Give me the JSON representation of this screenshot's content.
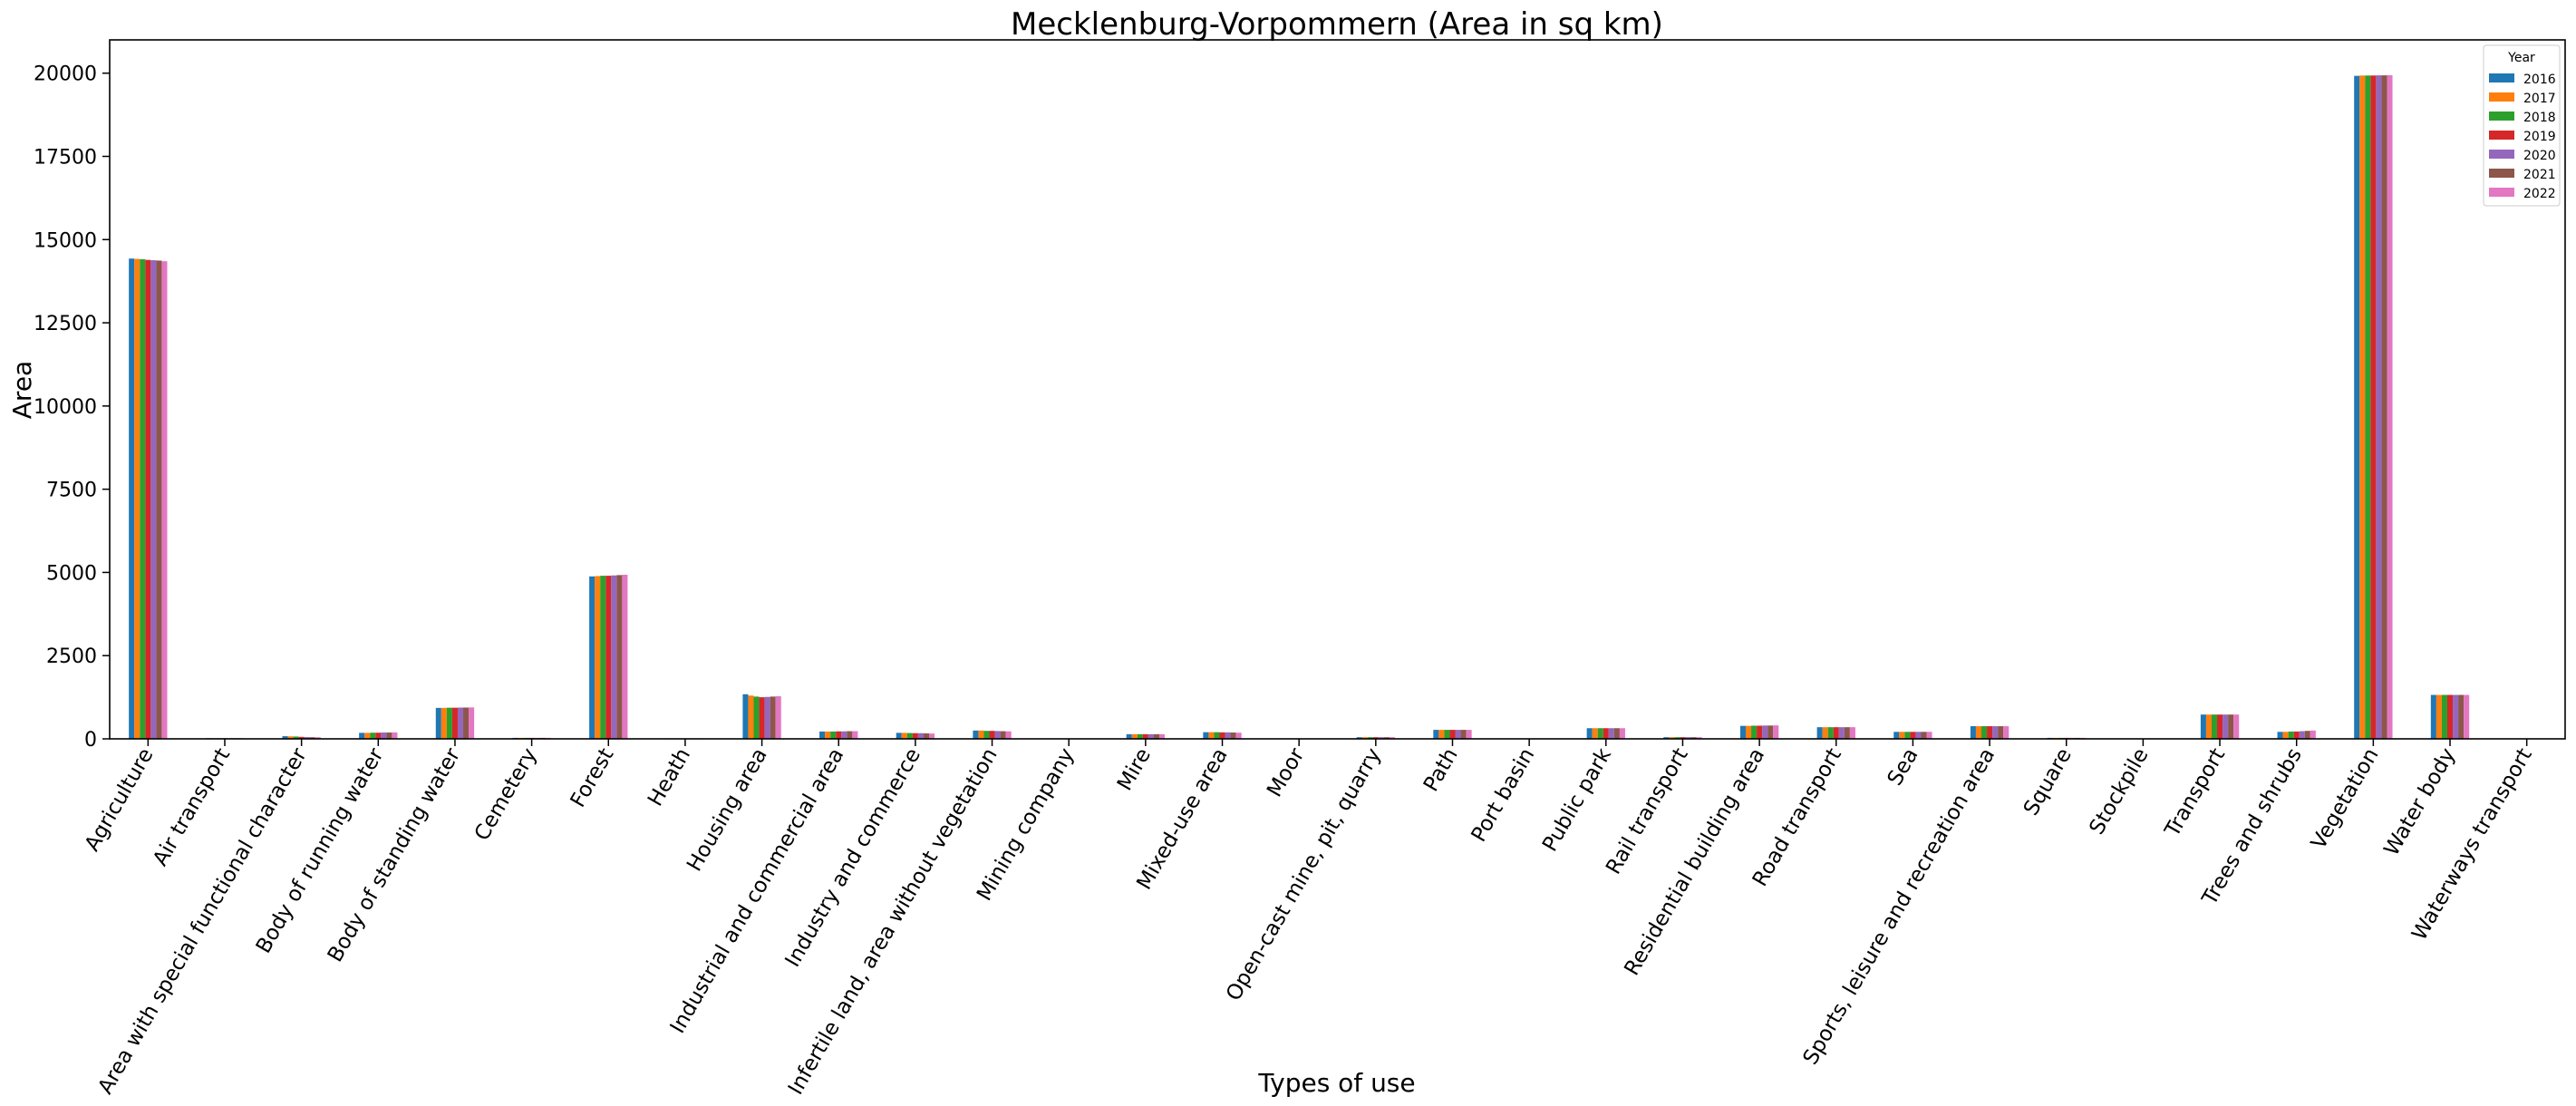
{
  "chart_data": {
    "type": "bar",
    "title": "Mecklenburg-Vorpommern (Area in sq km)",
    "xlabel": "Types of use",
    "ylabel": "Area",
    "ylim": [
      0,
      21000
    ],
    "yticks": [
      0,
      2500,
      5000,
      7500,
      10000,
      12500,
      15000,
      17500,
      20000
    ],
    "grid": false,
    "legend_title": "Year",
    "legend_position": "top-right",
    "categories": [
      "Agriculture",
      "Air transport",
      "Area with special functional character",
      "Body of running water",
      "Body of standing water",
      "Cemetery",
      "Forest",
      "Heath",
      "Housing area",
      "Industrial and commercial area",
      "Industry and commerce",
      "Infertile land, area without vegetation",
      "Mining company",
      "Mire",
      "Mixed-use area",
      "Moor",
      "Open-cast mine, pit, quarry",
      "Path",
      "Port basin",
      "Public park",
      "Rail transport",
      "Residential building area",
      "Road transport",
      "Sea",
      "Sports, leisure and recreation area",
      "Square",
      "Stockpile",
      "Transport",
      "Trees and shrubs",
      "Vegetation",
      "Water body",
      "Waterways transport"
    ],
    "series": [
      {
        "name": "2016",
        "color": "#1f77b4",
        "values": [
          14430,
          20,
          80,
          180,
          930,
          30,
          4880,
          15,
          1340,
          220,
          180,
          250,
          5,
          140,
          200,
          10,
          50,
          270,
          5,
          320,
          50,
          390,
          350,
          210,
          380,
          30,
          2,
          730,
          210,
          19920,
          1320,
          2
        ]
      },
      {
        "name": "2017",
        "color": "#ff7f0e",
        "values": [
          14420,
          20,
          75,
          180,
          930,
          30,
          4890,
          15,
          1300,
          220,
          180,
          250,
          5,
          140,
          200,
          10,
          50,
          270,
          5,
          320,
          50,
          390,
          350,
          210,
          380,
          30,
          2,
          730,
          210,
          19930,
          1320,
          2
        ]
      },
      {
        "name": "2018",
        "color": "#2ca02c",
        "values": [
          14410,
          20,
          70,
          185,
          935,
          30,
          4900,
          15,
          1270,
          220,
          175,
          240,
          5,
          140,
          200,
          10,
          50,
          270,
          5,
          320,
          50,
          395,
          350,
          210,
          380,
          30,
          2,
          730,
          220,
          19930,
          1320,
          2
        ]
      },
      {
        "name": "2019",
        "color": "#d62728",
        "values": [
          14390,
          20,
          60,
          185,
          935,
          30,
          4900,
          15,
          1250,
          225,
          170,
          240,
          5,
          140,
          195,
          10,
          50,
          270,
          5,
          320,
          50,
          395,
          350,
          210,
          380,
          30,
          2,
          730,
          220,
          19930,
          1320,
          2
        ]
      },
      {
        "name": "2020",
        "color": "#9467bd",
        "values": [
          14380,
          20,
          55,
          190,
          940,
          30,
          4910,
          15,
          1260,
          225,
          170,
          235,
          5,
          140,
          195,
          10,
          50,
          270,
          5,
          320,
          50,
          400,
          350,
          210,
          380,
          30,
          2,
          730,
          230,
          19935,
          1320,
          2
        ]
      },
      {
        "name": "2021",
        "color": "#8c564b",
        "values": [
          14370,
          20,
          50,
          190,
          940,
          30,
          4920,
          15,
          1270,
          230,
          165,
          230,
          5,
          140,
          190,
          10,
          50,
          270,
          5,
          320,
          50,
          400,
          350,
          210,
          380,
          30,
          2,
          730,
          240,
          19935,
          1320,
          2
        ]
      },
      {
        "name": "2022",
        "color": "#e377c2",
        "values": [
          14350,
          20,
          50,
          195,
          945,
          30,
          4930,
          15,
          1280,
          230,
          160,
          225,
          5,
          140,
          185,
          10,
          50,
          270,
          5,
          320,
          50,
          405,
          350,
          210,
          380,
          30,
          2,
          730,
          250,
          19940,
          1320,
          2
        ]
      }
    ]
  }
}
